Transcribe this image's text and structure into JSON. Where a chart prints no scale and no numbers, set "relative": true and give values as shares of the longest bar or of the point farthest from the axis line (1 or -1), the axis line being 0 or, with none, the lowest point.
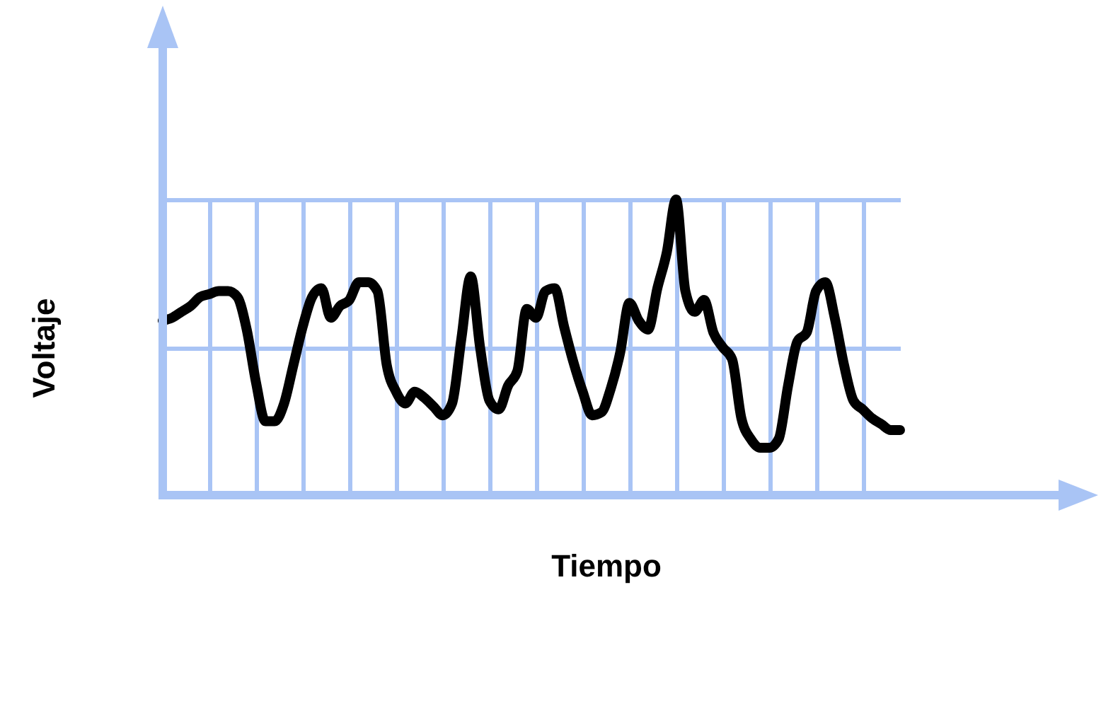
{
  "chart_data": {
    "type": "line",
    "xlabel": "Tiempo",
    "ylabel": "Voltaje",
    "relative": true,
    "grid": true,
    "categories": [
      null,
      null,
      null,
      null,
      null,
      null,
      null,
      null,
      null,
      null,
      null,
      null,
      null,
      null,
      null,
      null,
      null,
      null,
      null,
      null,
      null,
      null,
      null,
      null,
      null,
      null,
      null,
      null,
      null,
      null,
      null,
      null,
      null,
      null,
      null,
      null,
      null,
      null,
      null,
      null,
      null,
      null,
      null,
      null,
      null,
      null,
      null,
      null,
      null,
      null,
      null,
      null,
      null,
      null,
      null,
      null,
      null,
      null,
      null,
      null,
      null,
      null,
      null,
      null,
      null,
      null,
      null,
      null,
      null,
      null,
      null,
      null,
      null,
      null,
      null,
      null,
      null,
      null,
      null,
      null
    ],
    "series": [
      {
        "color": "#000000",
        "values": [
          0.59,
          0.6,
          0.62,
          0.64,
          0.67,
          0.68,
          0.69,
          0.69,
          0.67,
          0.56,
          0.38,
          0.25,
          0.25,
          0.31,
          0.44,
          0.57,
          0.67,
          0.7,
          0.6,
          0.64,
          0.66,
          0.72,
          0.72,
          0.69,
          0.44,
          0.35,
          0.31,
          0.35,
          0.33,
          0.3,
          0.27,
          0.31,
          0.53,
          0.74,
          0.5,
          0.32,
          0.29,
          0.37,
          0.42,
          0.63,
          0.6,
          0.69,
          0.7,
          0.57,
          0.45,
          0.35,
          0.27,
          0.28,
          0.36,
          0.48,
          0.65,
          0.59,
          0.56,
          0.7,
          0.82,
          1,
          0.69,
          0.62,
          0.66,
          0.55,
          0.5,
          0.46,
          0.26,
          0.19,
          0.16,
          0.16,
          0.19,
          0.37,
          0.52,
          0.55,
          0.69,
          0.72,
          0.6,
          0.44,
          0.32,
          0.29,
          0.26,
          0.24,
          0.22,
          0.22
        ]
      }
    ]
  }
}
